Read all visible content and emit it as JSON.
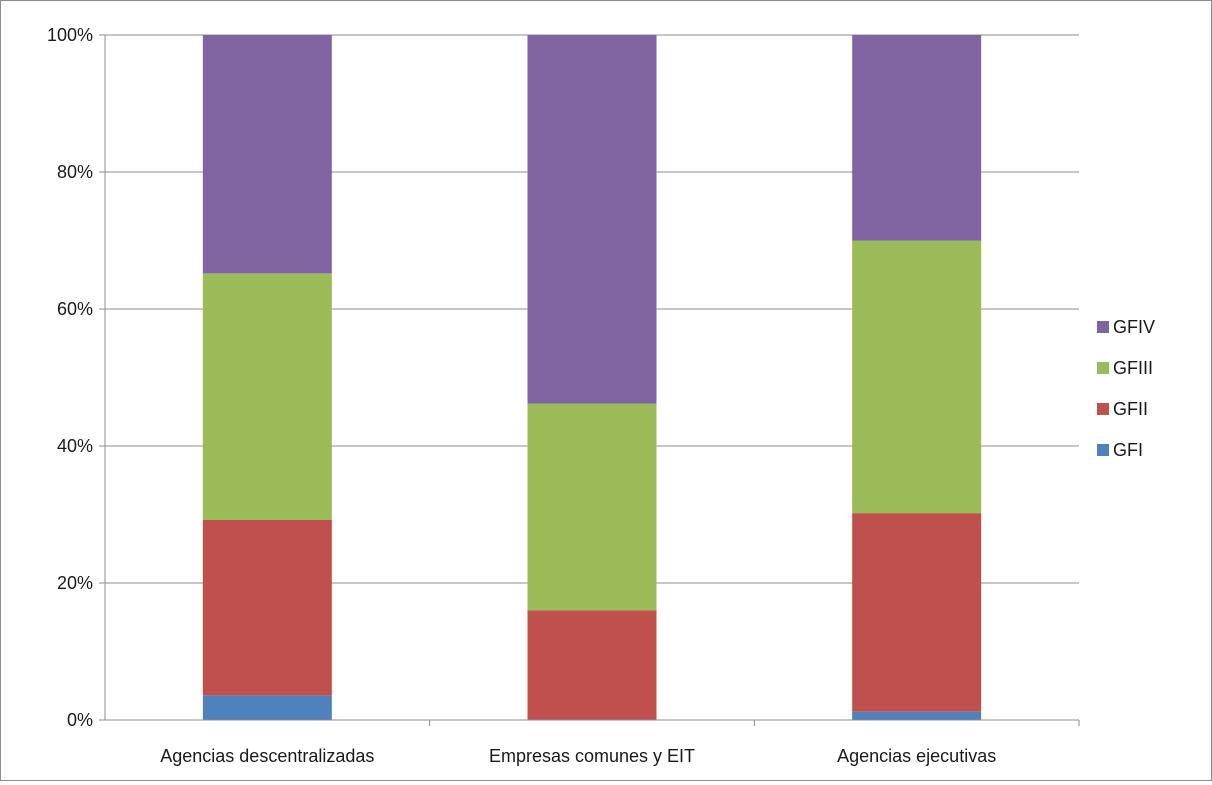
{
  "chart_data": {
    "type": "bar",
    "stacked": true,
    "percent": true,
    "title": "",
    "xlabel": "",
    "ylabel": "",
    "ylim": [
      0,
      100
    ],
    "y_ticks": [
      "0%",
      "20%",
      "40%",
      "60%",
      "80%",
      "100%"
    ],
    "grid": true,
    "legend_position": "right",
    "categories": [
      "Agencias descentralizadas",
      "Empresas comunes y EIT",
      "Agencias ejecutivas"
    ],
    "series": [
      {
        "name": "GFI",
        "color": "#4f81bd",
        "values": [
          3.6,
          0,
          1.2
        ]
      },
      {
        "name": "GFII",
        "color": "#c0504d",
        "values": [
          25.6,
          16.0,
          29.0
        ]
      },
      {
        "name": "GFIII",
        "color": "#9bbb59",
        "values": [
          36.0,
          30.2,
          39.8
        ]
      },
      {
        "name": "GFIV",
        "color": "#8064a2",
        "values": [
          34.8,
          53.8,
          30.0
        ]
      }
    ]
  }
}
